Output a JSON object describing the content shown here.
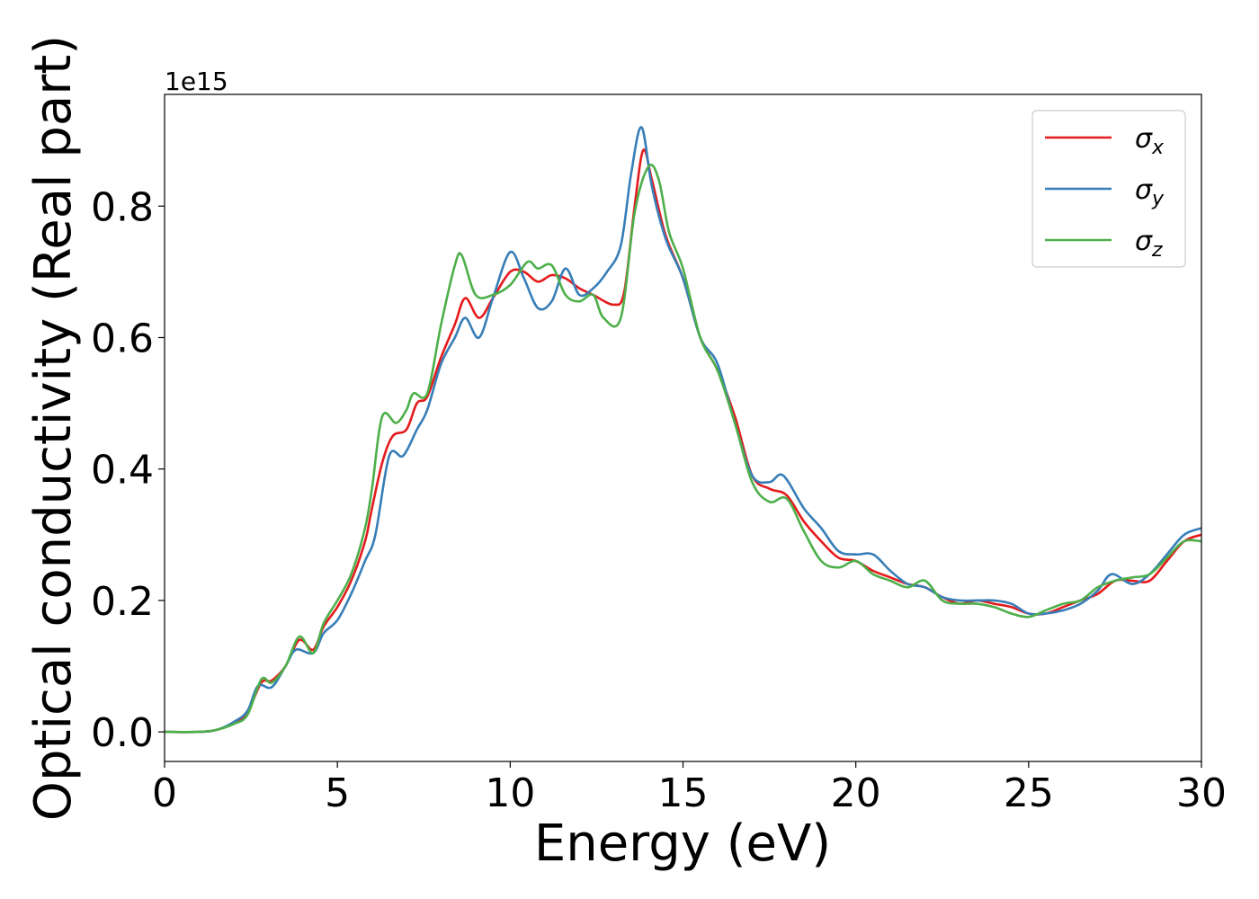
{
  "chart_data": {
    "type": "line",
    "xlabel": "Energy (eV)",
    "ylabel": "Optical conductivity (Real part)",
    "y_offset_label": "1e15",
    "xlim": [
      0,
      30
    ],
    "ylim": [
      -0.045,
      0.97
    ],
    "x_ticks": [
      0,
      5,
      10,
      15,
      20,
      25,
      30
    ],
    "x_tick_labels": [
      "0",
      "5",
      "10",
      "15",
      "20",
      "25",
      "30"
    ],
    "y_ticks": [
      0.0,
      0.2,
      0.4,
      0.6,
      0.8
    ],
    "y_tick_labels": [
      "0.0",
      "0.2",
      "0.4",
      "0.6",
      "0.8"
    ],
    "grid": false,
    "legend_position": "top-right",
    "series": [
      {
        "name": "σx",
        "symbol": "σ",
        "subscript": "x",
        "color": "#e41a1c",
        "points": [
          [
            0,
            0
          ],
          [
            1,
            0
          ],
          [
            1.5,
            0.003
          ],
          [
            2,
            0.013
          ],
          [
            2.4,
            0.03
          ],
          [
            2.8,
            0.075
          ],
          [
            3.1,
            0.078
          ],
          [
            3.5,
            0.1
          ],
          [
            3.9,
            0.14
          ],
          [
            4.3,
            0.125
          ],
          [
            4.6,
            0.16
          ],
          [
            5,
            0.19
          ],
          [
            5.4,
            0.23
          ],
          [
            5.8,
            0.29
          ],
          [
            6,
            0.34
          ],
          [
            6.3,
            0.41
          ],
          [
            6.6,
            0.45
          ],
          [
            7,
            0.46
          ],
          [
            7.3,
            0.5
          ],
          [
            7.6,
            0.51
          ],
          [
            8,
            0.57
          ],
          [
            8.4,
            0.62
          ],
          [
            8.7,
            0.66
          ],
          [
            9.1,
            0.63
          ],
          [
            9.5,
            0.66
          ],
          [
            10,
            0.7
          ],
          [
            10.4,
            0.7
          ],
          [
            10.8,
            0.685
          ],
          [
            11.2,
            0.695
          ],
          [
            11.6,
            0.69
          ],
          [
            12,
            0.675
          ],
          [
            12.4,
            0.665
          ],
          [
            13,
            0.65
          ],
          [
            13.3,
            0.67
          ],
          [
            13.6,
            0.8
          ],
          [
            13.85,
            0.885
          ],
          [
            14.1,
            0.84
          ],
          [
            14.5,
            0.755
          ],
          [
            15,
            0.69
          ],
          [
            15.5,
            0.6
          ],
          [
            16,
            0.55
          ],
          [
            16.5,
            0.48
          ],
          [
            17,
            0.39
          ],
          [
            17.5,
            0.37
          ],
          [
            18,
            0.36
          ],
          [
            18.5,
            0.32
          ],
          [
            19,
            0.29
          ],
          [
            19.5,
            0.265
          ],
          [
            20,
            0.26
          ],
          [
            20.5,
            0.245
          ],
          [
            21,
            0.235
          ],
          [
            21.5,
            0.225
          ],
          [
            22,
            0.22
          ],
          [
            22.5,
            0.205
          ],
          [
            23,
            0.195
          ],
          [
            23.5,
            0.2
          ],
          [
            24,
            0.195
          ],
          [
            24.5,
            0.19
          ],
          [
            25,
            0.18
          ],
          [
            25.5,
            0.18
          ],
          [
            26,
            0.19
          ],
          [
            26.5,
            0.2
          ],
          [
            27,
            0.21
          ],
          [
            27.5,
            0.23
          ],
          [
            28,
            0.23
          ],
          [
            28.5,
            0.23
          ],
          [
            29,
            0.26
          ],
          [
            29.5,
            0.29
          ],
          [
            30,
            0.3
          ]
        ]
      },
      {
        "name": "σy",
        "symbol": "σ",
        "subscript": "y",
        "color": "#377eb8",
        "points": [
          [
            0,
            0
          ],
          [
            1,
            0
          ],
          [
            1.5,
            0.003
          ],
          [
            2,
            0.015
          ],
          [
            2.4,
            0.032
          ],
          [
            2.7,
            0.07
          ],
          [
            3.1,
            0.068
          ],
          [
            3.5,
            0.1
          ],
          [
            3.8,
            0.125
          ],
          [
            4.3,
            0.12
          ],
          [
            4.6,
            0.15
          ],
          [
            5,
            0.17
          ],
          [
            5.4,
            0.21
          ],
          [
            5.8,
            0.26
          ],
          [
            6.1,
            0.3
          ],
          [
            6.5,
            0.42
          ],
          [
            6.9,
            0.42
          ],
          [
            7.3,
            0.46
          ],
          [
            7.6,
            0.49
          ],
          [
            8,
            0.56
          ],
          [
            8.4,
            0.6
          ],
          [
            8.7,
            0.63
          ],
          [
            9.1,
            0.6
          ],
          [
            9.5,
            0.66
          ],
          [
            10,
            0.73
          ],
          [
            10.4,
            0.69
          ],
          [
            10.8,
            0.645
          ],
          [
            11.2,
            0.655
          ],
          [
            11.6,
            0.705
          ],
          [
            12,
            0.665
          ],
          [
            12.4,
            0.675
          ],
          [
            12.8,
            0.7
          ],
          [
            13.2,
            0.74
          ],
          [
            13.5,
            0.85
          ],
          [
            13.8,
            0.92
          ],
          [
            14.1,
            0.83
          ],
          [
            14.5,
            0.75
          ],
          [
            15,
            0.69
          ],
          [
            15.5,
            0.6
          ],
          [
            16,
            0.56
          ],
          [
            16.5,
            0.47
          ],
          [
            17,
            0.39
          ],
          [
            17.5,
            0.38
          ],
          [
            17.9,
            0.39
          ],
          [
            18.5,
            0.34
          ],
          [
            19,
            0.31
          ],
          [
            19.5,
            0.275
          ],
          [
            20,
            0.27
          ],
          [
            20.5,
            0.27
          ],
          [
            21,
            0.245
          ],
          [
            21.5,
            0.225
          ],
          [
            22,
            0.22
          ],
          [
            22.5,
            0.205
          ],
          [
            23,
            0.2
          ],
          [
            23.5,
            0.2
          ],
          [
            24,
            0.2
          ],
          [
            24.5,
            0.195
          ],
          [
            25,
            0.18
          ],
          [
            25.5,
            0.18
          ],
          [
            26,
            0.185
          ],
          [
            26.5,
            0.195
          ],
          [
            27,
            0.215
          ],
          [
            27.4,
            0.24
          ],
          [
            28,
            0.225
          ],
          [
            28.5,
            0.24
          ],
          [
            29,
            0.27
          ],
          [
            29.5,
            0.3
          ],
          [
            30,
            0.31
          ]
        ]
      },
      {
        "name": "σz",
        "symbol": "σ",
        "subscript": "z",
        "color": "#4daf4a",
        "points": [
          [
            0,
            0
          ],
          [
            1,
            0
          ],
          [
            1.5,
            0.003
          ],
          [
            2,
            0.012
          ],
          [
            2.4,
            0.026
          ],
          [
            2.8,
            0.08
          ],
          [
            3.1,
            0.075
          ],
          [
            3.5,
            0.1
          ],
          [
            3.9,
            0.145
          ],
          [
            4.3,
            0.12
          ],
          [
            4.6,
            0.165
          ],
          [
            5,
            0.2
          ],
          [
            5.4,
            0.24
          ],
          [
            5.8,
            0.31
          ],
          [
            6,
            0.37
          ],
          [
            6.3,
            0.48
          ],
          [
            6.7,
            0.47
          ],
          [
            7,
            0.49
          ],
          [
            7.2,
            0.515
          ],
          [
            7.6,
            0.515
          ],
          [
            8,
            0.62
          ],
          [
            8.4,
            0.71
          ],
          [
            8.6,
            0.725
          ],
          [
            9,
            0.665
          ],
          [
            9.5,
            0.665
          ],
          [
            10,
            0.68
          ],
          [
            10.5,
            0.715
          ],
          [
            10.8,
            0.705
          ],
          [
            11.2,
            0.71
          ],
          [
            11.6,
            0.665
          ],
          [
            12,
            0.655
          ],
          [
            12.4,
            0.665
          ],
          [
            12.7,
            0.63
          ],
          [
            13.2,
            0.63
          ],
          [
            13.6,
            0.79
          ],
          [
            14,
            0.86
          ],
          [
            14.3,
            0.84
          ],
          [
            14.6,
            0.76
          ],
          [
            15,
            0.705
          ],
          [
            15.5,
            0.6
          ],
          [
            16,
            0.55
          ],
          [
            16.5,
            0.47
          ],
          [
            17,
            0.38
          ],
          [
            17.5,
            0.35
          ],
          [
            18,
            0.355
          ],
          [
            18.5,
            0.305
          ],
          [
            19,
            0.26
          ],
          [
            19.5,
            0.25
          ],
          [
            20,
            0.26
          ],
          [
            20.5,
            0.24
          ],
          [
            21,
            0.23
          ],
          [
            21.5,
            0.22
          ],
          [
            22,
            0.23
          ],
          [
            22.5,
            0.2
          ],
          [
            23,
            0.195
          ],
          [
            23.5,
            0.195
          ],
          [
            24,
            0.19
          ],
          [
            24.5,
            0.18
          ],
          [
            25,
            0.175
          ],
          [
            25.5,
            0.185
          ],
          [
            26,
            0.195
          ],
          [
            26.5,
            0.2
          ],
          [
            27,
            0.22
          ],
          [
            27.5,
            0.23
          ],
          [
            28,
            0.235
          ],
          [
            28.5,
            0.24
          ],
          [
            29,
            0.265
          ],
          [
            29.5,
            0.29
          ],
          [
            30,
            0.29
          ]
        ]
      }
    ]
  }
}
